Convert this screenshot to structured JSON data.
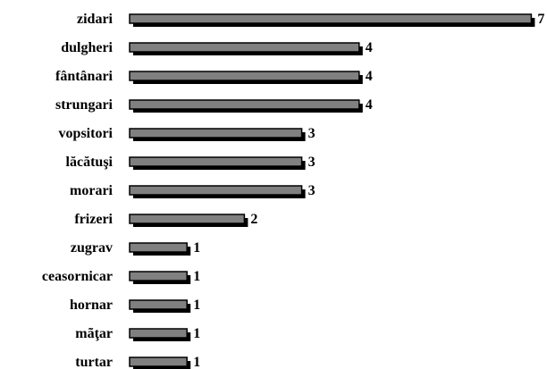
{
  "chart_data": {
    "type": "bar",
    "orientation": "horizontal",
    "title": "",
    "xlabel": "",
    "ylabel": "",
    "categories": [
      "zidari",
      "dulgheri",
      "fântânari",
      "strungari",
      "vopsitori",
      "lăcătuşi",
      "morari",
      "frizeri",
      "zugrav",
      "ceasornicar",
      "hornar",
      "mãţar",
      "turtar"
    ],
    "values": [
      7,
      4,
      4,
      4,
      3,
      3,
      3,
      2,
      1,
      1,
      1,
      1,
      1
    ],
    "xlim": [
      0,
      7
    ],
    "grid": false,
    "legend": "none",
    "colors": {
      "bar_fill": "#808080",
      "bar_stroke": "#000000",
      "bar_shadow": "#000000"
    }
  }
}
